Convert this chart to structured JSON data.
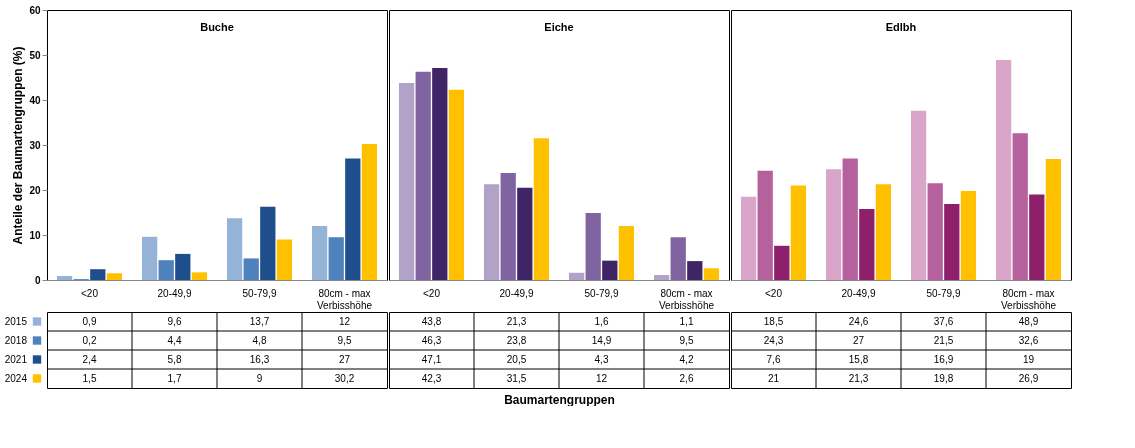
{
  "chart_data": [
    {
      "type": "bar",
      "title": "Buche",
      "ylabel": "Anteile der Baumartengruppen (%)",
      "categories": [
        "<20",
        "20-49,9",
        "50-79,9",
        "80cm - max Verbisshöhe"
      ],
      "ylim": [
        0,
        60
      ],
      "yticks": [
        0,
        10,
        20,
        30,
        40,
        50,
        60
      ],
      "legend": "bottom left",
      "series": [
        {
          "name": "2015",
          "color": "#95b3d7",
          "values": [
            0.9,
            9.6,
            13.7,
            12
          ],
          "value_labels": [
            "0,9",
            "9,6",
            "13,7",
            "12"
          ]
        },
        {
          "name": "2018",
          "color": "#4f81bd",
          "values": [
            0.2,
            4.4,
            4.8,
            9.5
          ],
          "value_labels": [
            "0,2",
            "4,4",
            "4,8",
            "9,5"
          ]
        },
        {
          "name": "2021",
          "color": "#1f4e8c",
          "values": [
            2.4,
            5.8,
            16.3,
            27
          ],
          "value_labels": [
            "2,4",
            "5,8",
            "16,3",
            "27"
          ]
        },
        {
          "name": "2024",
          "color": "#ffc000",
          "values": [
            1.5,
            1.7,
            9,
            30.2
          ],
          "value_labels": [
            "1,5",
            "1,7",
            "9",
            "30,2"
          ]
        }
      ]
    },
    {
      "type": "bar",
      "title": "Eiche",
      "xlabel": "Baumartengruppen",
      "categories": [
        "<20",
        "20-49,9",
        "50-79,9",
        "80cm - max Verbisshöhe"
      ],
      "ylim": [
        0,
        60
      ],
      "yticks": [
        0,
        10,
        20,
        30,
        40,
        50,
        60
      ],
      "tick_labels": "x",
      "series": [
        {
          "color": "#b3a2c7",
          "values": [
            43.8,
            21.3,
            1.6,
            1.1
          ],
          "value_labels": [
            "43,8",
            "21,3",
            "1,6",
            "1,1"
          ]
        },
        {
          "color": "#8064a2",
          "values": [
            46.3,
            23.8,
            14.9,
            9.5
          ],
          "value_labels": [
            "46,3",
            "23,8",
            "14,9",
            "9,5"
          ]
        },
        {
          "color": "#3f2566",
          "values": [
            47.1,
            20.5,
            4.3,
            4.2
          ],
          "value_labels": [
            "47,1",
            "20,5",
            "4,3",
            "4,2"
          ]
        },
        {
          "color": "#ffc000",
          "values": [
            42.3,
            31.5,
            12,
            2.6
          ],
          "value_labels": [
            "42,3",
            "31,5",
            "12",
            "2,6"
          ]
        }
      ]
    },
    {
      "type": "bar",
      "title": "Edlbh",
      "categories": [
        "<20",
        "20-49,9",
        "50-79,9",
        "80cm - max Verbisshöhe"
      ],
      "ylim": [
        0,
        60
      ],
      "yticks": [
        0,
        10,
        20,
        30,
        40,
        50,
        60
      ],
      "tick_labels": "x",
      "series": [
        {
          "color": "#d9a5c8",
          "values": [
            18.5,
            24.6,
            37.6,
            48.9
          ],
          "value_labels": [
            "18,5",
            "24,6",
            "37,6",
            "48,9"
          ]
        },
        {
          "color": "#b5619d",
          "values": [
            24.3,
            27,
            21.5,
            32.6
          ],
          "value_labels": [
            "24,3",
            "27",
            "21,5",
            "32,6"
          ]
        },
        {
          "color": "#8e1f6a",
          "values": [
            7.6,
            15.8,
            16.9,
            19
          ],
          "value_labels": [
            "7,6",
            "15,8",
            "16,9",
            "19"
          ]
        },
        {
          "color": "#ffc000",
          "values": [
            21,
            21.3,
            19.8,
            26.9
          ],
          "value_labels": [
            "21",
            "21,3",
            "19,8",
            "26,9"
          ]
        }
      ]
    }
  ]
}
